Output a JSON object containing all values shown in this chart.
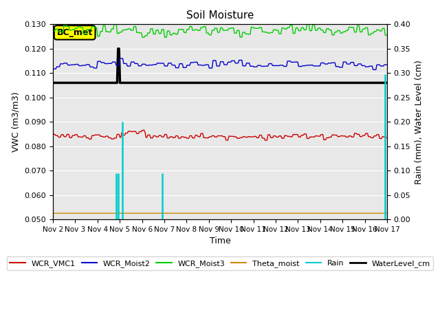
{
  "title": "Soil Moisture",
  "xlabel": "Time",
  "ylabel_left": "VWC (m3/m3)",
  "ylabel_right": "Rain (mm), Water Level (cm)",
  "ylim_left": [
    0.05,
    0.13
  ],
  "ylim_right": [
    0.0,
    0.4
  ],
  "yticks_left": [
    0.05,
    0.06,
    0.07,
    0.08,
    0.09,
    0.1,
    0.11,
    0.12,
    0.13
  ],
  "yticks_right": [
    0.0,
    0.05,
    0.1,
    0.15,
    0.2,
    0.25,
    0.3,
    0.35,
    0.4
  ],
  "xtick_days": [
    2,
    3,
    4,
    5,
    6,
    7,
    8,
    9,
    10,
    11,
    12,
    13,
    14,
    15,
    16,
    17
  ],
  "xtick_labels": [
    "Nov 2",
    "Nov 3",
    "Nov 4",
    "Nov 5",
    "Nov 6",
    "Nov 7",
    "Nov 8",
    "Nov 9",
    "Nov 10",
    "Nov 11",
    "Nov 12",
    "Nov 13",
    "Nov 14",
    "Nov 15",
    "Nov 16",
    "Nov 17"
  ],
  "bg_color": "#e8e8e8",
  "annotation_label": "BC_met",
  "colors": {
    "WCR_VMC1": "#cc0000",
    "WCR_Moist2": "#0000cc",
    "WCR_Moist3": "#00cc00",
    "Theta_moist": "#cc8800",
    "Rain": "#00cccc",
    "WaterLevel_cm": "#000000"
  },
  "figsize": [
    6.4,
    4.8
  ],
  "dpi": 100
}
